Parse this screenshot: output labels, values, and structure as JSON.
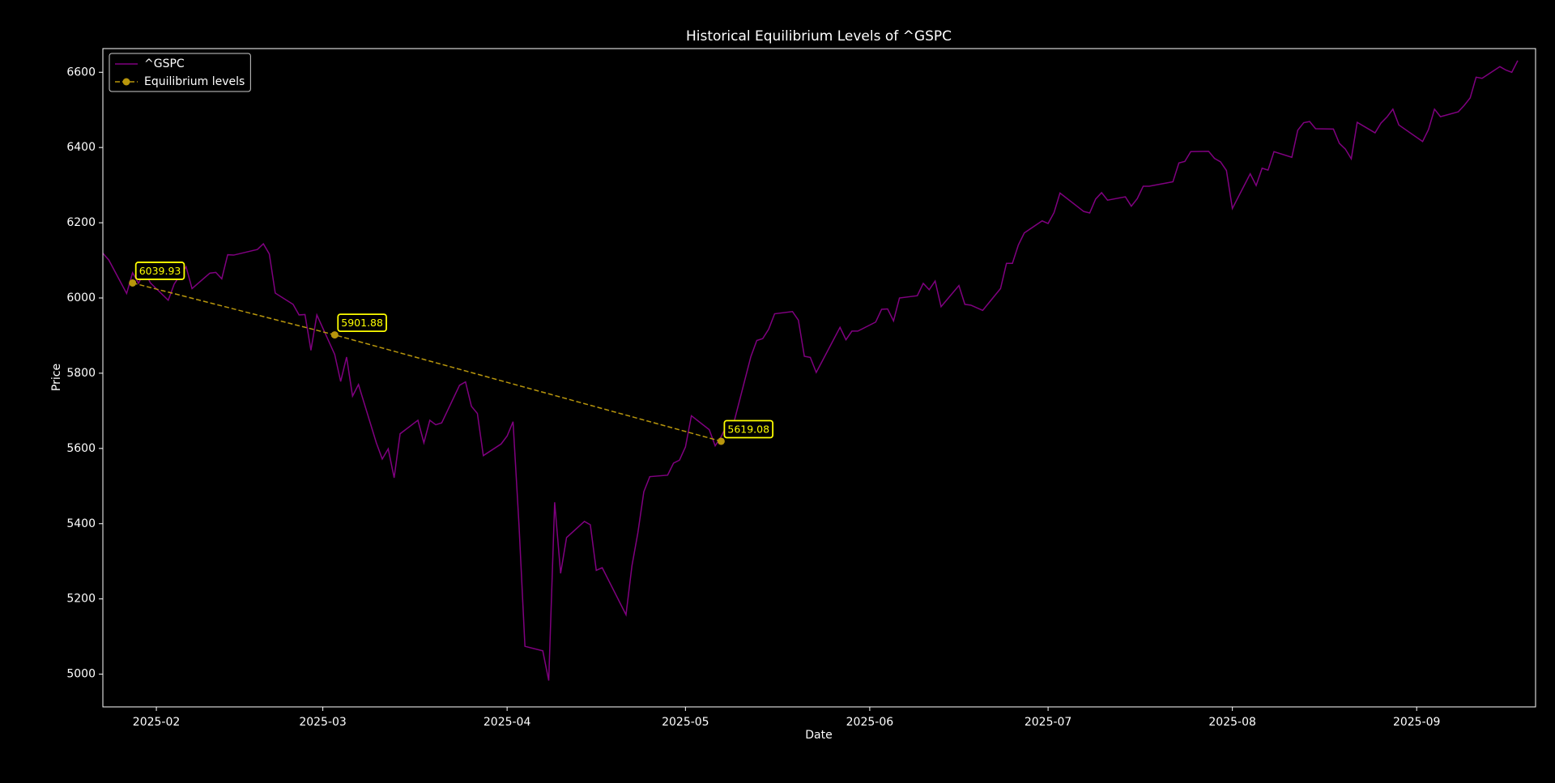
{
  "chart_data": {
    "type": "line",
    "title": "Historical Equilibrium Levels of ^GSPC",
    "xlabel": "Date",
    "ylabel": "Price",
    "xlim": [
      "2025-01-23",
      "2025-09-21"
    ],
    "ylim": [
      4913,
      6663
    ],
    "xticks": [
      {
        "value": "2025-02-01",
        "label": "2025-02"
      },
      {
        "value": "2025-03-01",
        "label": "2025-03"
      },
      {
        "value": "2025-04-01",
        "label": "2025-04"
      },
      {
        "value": "2025-05-01",
        "label": "2025-05"
      },
      {
        "value": "2025-06-01",
        "label": "2025-06"
      },
      {
        "value": "2025-07-01",
        "label": "2025-07"
      },
      {
        "value": "2025-08-01",
        "label": "2025-08"
      },
      {
        "value": "2025-09-01",
        "label": "2025-09"
      }
    ],
    "yticks": [
      5000,
      5200,
      5400,
      5600,
      5800,
      6000,
      6200,
      6400,
      6600
    ],
    "grid": false,
    "legend": "upper left",
    "series": [
      {
        "name": "^GSPC",
        "color": "#800080",
        "x": [
          "2025-01-23",
          "2025-01-24",
          "2025-01-27",
          "2025-01-28",
          "2025-01-29",
          "2025-01-30",
          "2025-01-31",
          "2025-02-03",
          "2025-02-04",
          "2025-02-05",
          "2025-02-06",
          "2025-02-07",
          "2025-02-10",
          "2025-02-11",
          "2025-02-12",
          "2025-02-13",
          "2025-02-14",
          "2025-02-18",
          "2025-02-19",
          "2025-02-20",
          "2025-02-21",
          "2025-02-24",
          "2025-02-25",
          "2025-02-26",
          "2025-02-27",
          "2025-02-28",
          "2025-03-03",
          "2025-03-04",
          "2025-03-05",
          "2025-03-06",
          "2025-03-07",
          "2025-03-10",
          "2025-03-11",
          "2025-03-12",
          "2025-03-13",
          "2025-03-14",
          "2025-03-17",
          "2025-03-18",
          "2025-03-19",
          "2025-03-20",
          "2025-03-21",
          "2025-03-24",
          "2025-03-25",
          "2025-03-26",
          "2025-03-27",
          "2025-03-28",
          "2025-03-31",
          "2025-04-01",
          "2025-04-02",
          "2025-04-03",
          "2025-04-04",
          "2025-04-07",
          "2025-04-08",
          "2025-04-09",
          "2025-04-10",
          "2025-04-11",
          "2025-04-14",
          "2025-04-15",
          "2025-04-16",
          "2025-04-17",
          "2025-04-21",
          "2025-04-22",
          "2025-04-23",
          "2025-04-24",
          "2025-04-25",
          "2025-04-28",
          "2025-04-29",
          "2025-04-30",
          "2025-05-01",
          "2025-05-02",
          "2025-05-05",
          "2025-05-06",
          "2025-05-07",
          "2025-05-08",
          "2025-05-09",
          "2025-05-12",
          "2025-05-13",
          "2025-05-14",
          "2025-05-15",
          "2025-05-16",
          "2025-05-19",
          "2025-05-20",
          "2025-05-21",
          "2025-05-22",
          "2025-05-23",
          "2025-05-27",
          "2025-05-28",
          "2025-05-29",
          "2025-05-30",
          "2025-06-02",
          "2025-06-03",
          "2025-06-04",
          "2025-06-05",
          "2025-06-06",
          "2025-06-09",
          "2025-06-10",
          "2025-06-11",
          "2025-06-12",
          "2025-06-13",
          "2025-06-16",
          "2025-06-17",
          "2025-06-18",
          "2025-06-20",
          "2025-06-23",
          "2025-06-24",
          "2025-06-25",
          "2025-06-26",
          "2025-06-27",
          "2025-06-30",
          "2025-07-01",
          "2025-07-02",
          "2025-07-03",
          "2025-07-07",
          "2025-07-08",
          "2025-07-09",
          "2025-07-10",
          "2025-07-11",
          "2025-07-14",
          "2025-07-15",
          "2025-07-16",
          "2025-07-17",
          "2025-07-18",
          "2025-07-21",
          "2025-07-22",
          "2025-07-23",
          "2025-07-24",
          "2025-07-25",
          "2025-07-28",
          "2025-07-29",
          "2025-07-30",
          "2025-07-31",
          "2025-08-01",
          "2025-08-04",
          "2025-08-05",
          "2025-08-06",
          "2025-08-07",
          "2025-08-08",
          "2025-08-11",
          "2025-08-12",
          "2025-08-13",
          "2025-08-14",
          "2025-08-15",
          "2025-08-18",
          "2025-08-19",
          "2025-08-20",
          "2025-08-21",
          "2025-08-22",
          "2025-08-25",
          "2025-08-26",
          "2025-08-27",
          "2025-08-28",
          "2025-08-29",
          "2025-09-02",
          "2025-09-03",
          "2025-09-04",
          "2025-09-05",
          "2025-09-08",
          "2025-09-09",
          "2025-09-10",
          "2025-09-11",
          "2025-09-12",
          "2025-09-15",
          "2025-09-16",
          "2025-09-17",
          "2025-09-18"
        ],
        "values": [
          6119,
          6101,
          6012,
          6067,
          6039,
          6071,
          6040,
          5994,
          6037,
          6061,
          6083,
          6025,
          6066,
          6068,
          6051,
          6115,
          6114,
          6129,
          6144,
          6117,
          6013,
          5983,
          5955,
          5956,
          5861,
          5955,
          5850,
          5778,
          5843,
          5739,
          5770,
          5615,
          5572,
          5599,
          5522,
          5639,
          5675,
          5615,
          5675,
          5663,
          5668,
          5768,
          5777,
          5712,
          5693,
          5581,
          5612,
          5633,
          5671,
          5397,
          5074,
          5062,
          4983,
          5457,
          5268,
          5363,
          5406,
          5397,
          5276,
          5283,
          5158,
          5288,
          5376,
          5485,
          5525,
          5529,
          5561,
          5569,
          5604,
          5687,
          5650,
          5607,
          5631,
          5664,
          5660,
          5844,
          5887,
          5892,
          5917,
          5958,
          5964,
          5941,
          5845,
          5842,
          5802,
          5922,
          5889,
          5912,
          5912,
          5936,
          5970,
          5971,
          5939,
          6000,
          6006,
          6039,
          6022,
          6045,
          5977,
          6033,
          5983,
          5981,
          5967,
          6025,
          6092,
          6092,
          6141,
          6173,
          6205,
          6198,
          6227,
          6279,
          6230,
          6226,
          6263,
          6280,
          6260,
          6269,
          6244,
          6264,
          6297,
          6297,
          6306,
          6309,
          6359,
          6363,
          6389,
          6390,
          6371,
          6362,
          6339,
          6238,
          6330,
          6299,
          6345,
          6340,
          6389,
          6374,
          6446,
          6466,
          6469,
          6450,
          6449,
          6411,
          6396,
          6370,
          6467,
          6439,
          6465,
          6481,
          6502,
          6460,
          6416,
          6448,
          6502,
          6482,
          6495,
          6512,
          6532,
          6587,
          6584,
          6615,
          6606,
          6600,
          6631
        ]
      },
      {
        "name": "Equilibrium levels",
        "color": "#b8960c",
        "linestyle": "dashed",
        "marker": "circle",
        "annotation_color": "#ffff00",
        "x": [
          "2025-01-28",
          "2025-03-03",
          "2025-05-07"
        ],
        "values": [
          6039.93,
          5901.88,
          5619.08
        ]
      }
    ]
  }
}
